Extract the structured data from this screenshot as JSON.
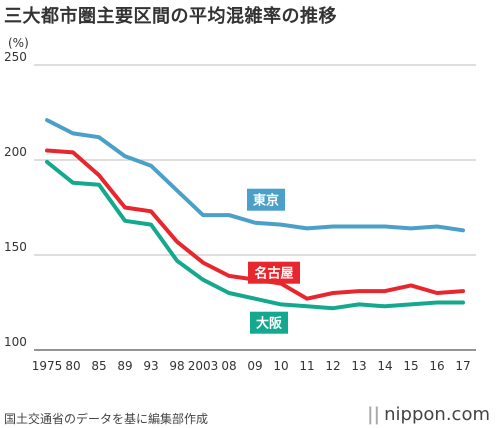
{
  "header": {
    "title": "三大都市圏主要区間の平均混雑率の推移"
  },
  "footer": {
    "source": "国土交通省のデータを基に編集部作成",
    "brand": "nippon.com",
    "brand_mark": "||"
  },
  "chart_data": {
    "type": "line",
    "title": "三大都市圏主要区間の平均混雑率の推移",
    "ylabel": "(%)",
    "ylim": [
      100,
      250
    ],
    "yticks": [
      100,
      150,
      200,
      250
    ],
    "categories": [
      "1975",
      "80",
      "85",
      "89",
      "93",
      "98",
      "2003",
      "08",
      "09",
      "10",
      "11",
      "12",
      "13",
      "14",
      "15",
      "16",
      "17"
    ],
    "grid": true,
    "series": [
      {
        "name": "東京",
        "color": "#4aa0c8",
        "values": [
          221,
          214,
          212,
          202,
          197,
          184,
          171,
          171,
          167,
          166,
          164,
          165,
          165,
          165,
          164,
          165,
          163
        ]
      },
      {
        "name": "名古屋",
        "color": "#e8262d",
        "values": [
          205,
          204,
          192,
          175,
          173,
          157,
          146,
          139,
          137,
          135,
          127,
          130,
          131,
          131,
          134,
          130,
          131
        ]
      },
      {
        "name": "大阪",
        "color": "#14a98e",
        "values": [
          199,
          188,
          187,
          168,
          166,
          147,
          137,
          130,
          127,
          124,
          123,
          122,
          124,
          123,
          124,
          125,
          125
        ]
      }
    ]
  }
}
